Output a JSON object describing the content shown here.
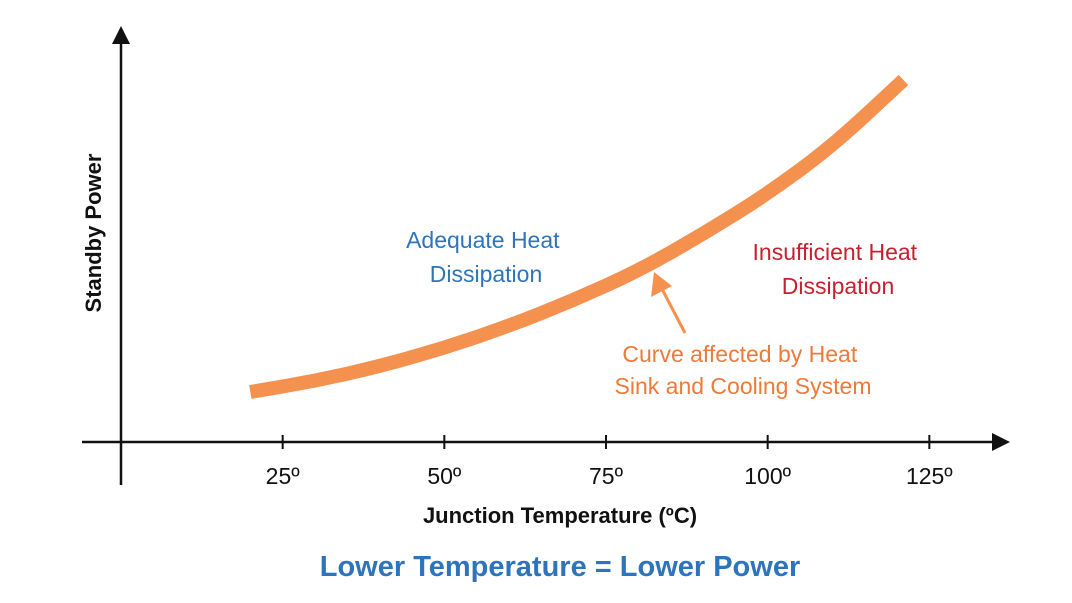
{
  "chart_data": {
    "type": "line",
    "title": "",
    "caption": "Lower Temperature = Lower Power",
    "xlabel": "Junction Temperature (ºC)",
    "ylabel": "Standby Power",
    "xlim": [
      0,
      135
    ],
    "x_ticks": [
      25,
      50,
      75,
      100,
      125
    ],
    "x_tick_labels": [
      "25º",
      "50º",
      "75º",
      "100º",
      "125º"
    ],
    "y_ticks": [],
    "ylim": [
      0,
      100
    ],
    "grid": false,
    "legend": "none",
    "series": [
      {
        "x": [
          20,
          30,
          40,
          50,
          60,
          70,
          80,
          90,
          100,
          110,
          121
        ],
        "y": [
          15,
          18,
          22,
          27,
          33,
          40,
          48,
          58,
          69,
          82,
          100
        ]
      }
    ],
    "annotations": [
      {
        "id": "left",
        "lines": [
          "Adequate Heat",
          "Dissipation"
        ]
      },
      {
        "id": "right",
        "lines": [
          "Insufficient Heat",
          "Dissipation"
        ]
      },
      {
        "id": "curve",
        "lines": [
          "Curve affected by Heat",
          "Sink and Cooling System"
        ]
      }
    ],
    "colors": {
      "curve": "#F5914F",
      "adequate": "#2E74BA",
      "insufficient": "#C8202F",
      "curve_note": "#EE7A3A",
      "caption": "#2E74BA",
      "axis": "#111111"
    }
  }
}
